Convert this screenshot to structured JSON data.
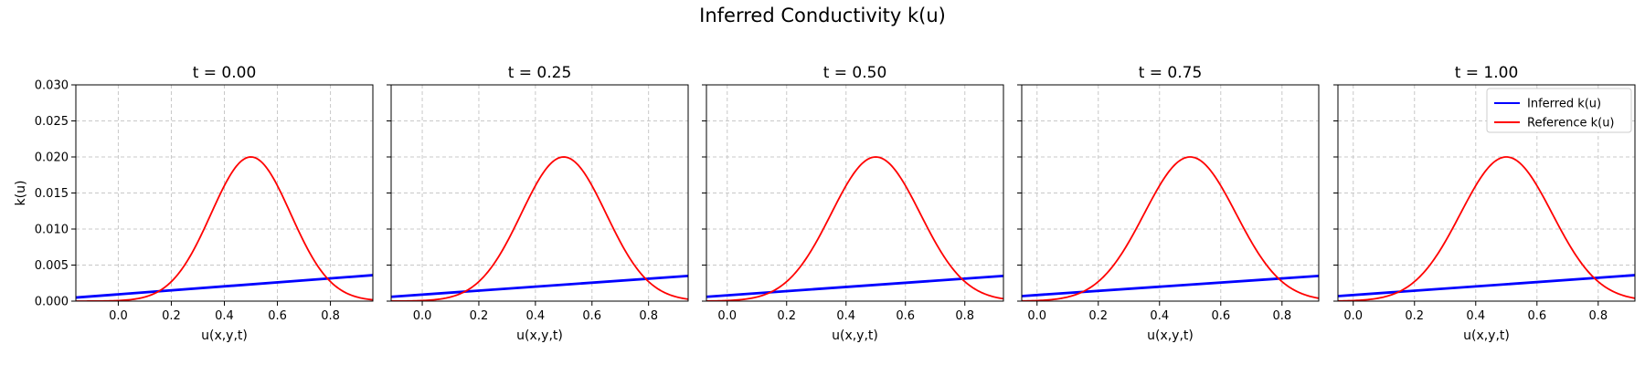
{
  "title": "Inferred Conductivity k(u)",
  "colors": {
    "inferred": "#0000ff",
    "reference": "#ff0000",
    "grid": "#c8c8c8"
  },
  "legend": {
    "placement": "top-right",
    "entries": [
      "Inferred k(u)",
      "Reference k(u)"
    ]
  },
  "chart_data": [
    {
      "type": "line",
      "title": "t = 0.00",
      "xlabel": "u(x,y,t)",
      "ylabel": "k(u)",
      "xlim": [
        -0.16,
        0.96
      ],
      "ylim": [
        0,
        0.03
      ],
      "xticks": [
        "0.0",
        "0.2",
        "0.4",
        "0.6",
        "0.8"
      ],
      "yticks": [
        "0.000",
        "0.005",
        "0.010",
        "0.015",
        "0.020",
        "0.025",
        "0.030"
      ],
      "grid": true,
      "legend": false,
      "series": [
        {
          "name": "Inferred k(u)",
          "model": "linear",
          "x": [
            -0.16,
            0.96
          ],
          "y": [
            0.0005,
            0.0036
          ]
        },
        {
          "name": "Reference k(u)",
          "model": "gaussian",
          "x": [
            -0.16,
            0.1,
            0.3,
            0.5,
            0.7,
            0.8,
            0.96
          ],
          "y": [
            3e-05,
            0.0011,
            0.0121,
            0.02,
            0.0121,
            0.0033,
            0.0002
          ]
        }
      ]
    },
    {
      "type": "line",
      "title": "t = 0.25",
      "xlabel": "u(x,y,t)",
      "ylabel": "",
      "xlim": [
        -0.11,
        0.94
      ],
      "ylim": [
        0,
        0.03
      ],
      "xticks": [
        "0.0",
        "0.2",
        "0.4",
        "0.6",
        "0.8"
      ],
      "yticks": [
        "",
        "",
        "",
        "",
        "",
        "",
        ""
      ],
      "grid": true,
      "legend": false,
      "series": [
        {
          "name": "Inferred k(u)",
          "model": "linear",
          "x": [
            -0.11,
            0.94
          ],
          "y": [
            0.0006,
            0.0035
          ]
        },
        {
          "name": "Reference k(u)",
          "model": "gaussian",
          "x": [
            -0.11,
            0.1,
            0.3,
            0.5,
            0.7,
            0.8,
            0.94
          ],
          "y": [
            7e-05,
            0.0011,
            0.0121,
            0.02,
            0.0121,
            0.0033,
            0.0003
          ]
        }
      ]
    },
    {
      "type": "line",
      "title": "t = 0.50",
      "xlabel": "u(x,y,t)",
      "ylabel": "",
      "xlim": [
        -0.07,
        0.93
      ],
      "ylim": [
        0,
        0.03
      ],
      "xticks": [
        "0.0",
        "0.2",
        "0.4",
        "0.6",
        "0.8"
      ],
      "yticks": [
        "",
        "",
        "",
        "",
        "",
        "",
        ""
      ],
      "grid": true,
      "legend": false,
      "series": [
        {
          "name": "Inferred k(u)",
          "model": "linear",
          "x": [
            -0.07,
            0.93
          ],
          "y": [
            0.0006,
            0.0035
          ]
        },
        {
          "name": "Reference k(u)",
          "model": "gaussian",
          "x": [
            -0.07,
            0.1,
            0.3,
            0.5,
            0.7,
            0.8,
            0.93
          ],
          "y": [
            0.0001,
            0.0011,
            0.0121,
            0.02,
            0.0121,
            0.0033,
            0.0004
          ]
        }
      ]
    },
    {
      "type": "line",
      "title": "t = 0.75",
      "xlabel": "u(x,y,t)",
      "ylabel": "",
      "xlim": [
        -0.05,
        0.92
      ],
      "ylim": [
        0,
        0.03
      ],
      "xticks": [
        "0.0",
        "0.2",
        "0.4",
        "0.6",
        "0.8"
      ],
      "yticks": [
        "",
        "",
        "",
        "",
        "",
        "",
        ""
      ],
      "grid": true,
      "legend": false,
      "series": [
        {
          "name": "Inferred k(u)",
          "model": "linear",
          "x": [
            -0.05,
            0.92
          ],
          "y": [
            0.0007,
            0.0035
          ]
        },
        {
          "name": "Reference k(u)",
          "model": "gaussian",
          "x": [
            -0.05,
            0.1,
            0.3,
            0.5,
            0.7,
            0.8,
            0.92
          ],
          "y": [
            0.0002,
            0.0011,
            0.0121,
            0.02,
            0.0121,
            0.0033,
            0.0005
          ]
        }
      ]
    },
    {
      "type": "line",
      "title": "t = 1.00",
      "xlabel": "u(x,y,t)",
      "ylabel": "",
      "xlim": [
        -0.05,
        0.92
      ],
      "ylim": [
        0,
        0.03
      ],
      "xticks": [
        "0.0",
        "0.2",
        "0.4",
        "0.6",
        "0.8"
      ],
      "yticks": [
        "",
        "",
        "",
        "",
        "",
        "",
        ""
      ],
      "grid": true,
      "legend": true,
      "series": [
        {
          "name": "Inferred k(u)",
          "model": "linear",
          "x": [
            -0.05,
            0.92
          ],
          "y": [
            0.0007,
            0.0036
          ]
        },
        {
          "name": "Reference k(u)",
          "model": "gaussian",
          "x": [
            -0.05,
            0.1,
            0.3,
            0.5,
            0.7,
            0.8,
            0.92
          ],
          "y": [
            0.0002,
            0.0011,
            0.0121,
            0.02,
            0.0121,
            0.0033,
            0.0005
          ]
        }
      ]
    }
  ]
}
